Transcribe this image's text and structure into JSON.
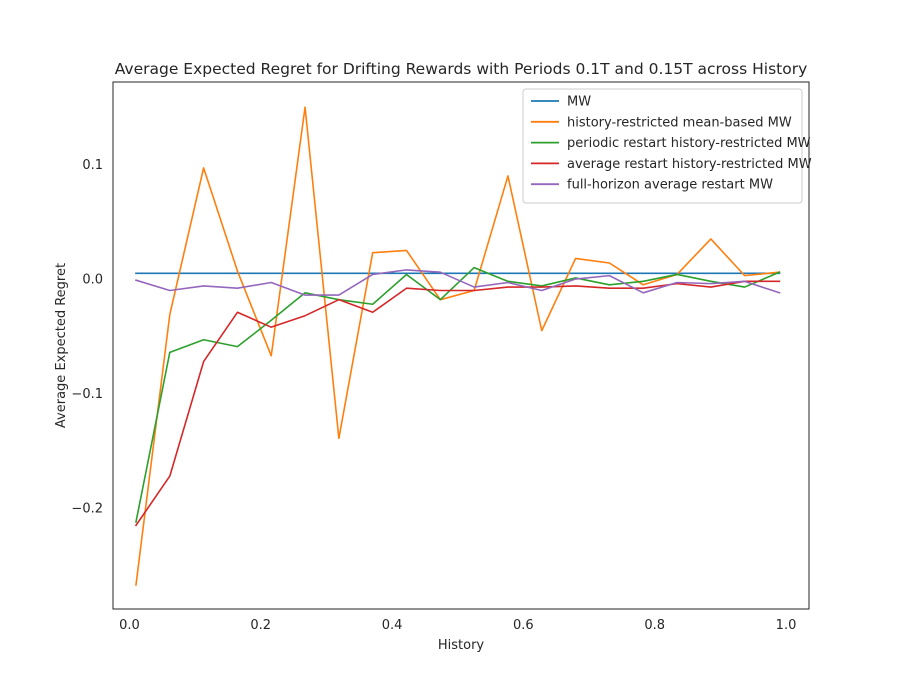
{
  "chart_data": {
    "type": "line",
    "title": "Average Expected Regret for Drifting Rewards with Periods 0.1T and 0.15T across History",
    "xlabel": "History",
    "ylabel": "Average Expected Regret",
    "xlim": [
      -0.025,
      1.035
    ],
    "ylim": [
      -0.288,
      0.172
    ],
    "xticks": [
      0.0,
      0.2,
      0.4,
      0.6,
      0.8,
      1.0
    ],
    "xtick_labels": [
      "0.0",
      "0.2",
      "0.4",
      "0.6",
      "0.8",
      "1.0"
    ],
    "yticks": [
      -0.2,
      -0.1,
      0.0,
      0.1
    ],
    "ytick_labels": [
      "−0.2",
      "−0.1",
      "0.0",
      "0.1"
    ],
    "grid": false,
    "legend_position": "top-right",
    "x": [
      0.01,
      0.0615,
      0.113,
      0.1645,
      0.216,
      0.2675,
      0.319,
      0.3705,
      0.422,
      0.4735,
      0.525,
      0.5765,
      0.628,
      0.6795,
      0.731,
      0.7825,
      0.834,
      0.8855,
      0.937,
      0.99
    ],
    "series": [
      {
        "name": "MW",
        "color": "#1f77b4",
        "values": [
          0.005,
          0.005,
          0.005,
          0.005,
          0.005,
          0.005,
          0.005,
          0.005,
          0.005,
          0.005,
          0.005,
          0.005,
          0.005,
          0.005,
          0.005,
          0.005,
          0.005,
          0.005,
          0.005,
          0.005
        ]
      },
      {
        "name": "history-restricted mean-based MW",
        "color": "#ff7f0e",
        "values": [
          -0.267,
          -0.031,
          0.097,
          0.007,
          -0.067,
          0.15,
          -0.139,
          0.023,
          0.025,
          -0.018,
          -0.01,
          0.09,
          -0.045,
          0.018,
          0.014,
          -0.005,
          0.004,
          0.035,
          0.003,
          0.006
        ]
      },
      {
        "name": "periodic restart history-restricted MW",
        "color": "#2ca02c",
        "values": [
          -0.212,
          -0.064,
          -0.053,
          -0.059,
          -0.036,
          -0.012,
          -0.018,
          -0.022,
          0.004,
          -0.018,
          0.01,
          -0.002,
          -0.006,
          0.001,
          -0.005,
          -0.002,
          0.004,
          -0.002,
          -0.007,
          0.006
        ]
      },
      {
        "name": "average restart history-restricted MW",
        "color": "#d62728",
        "values": [
          -0.215,
          -0.172,
          -0.072,
          -0.029,
          -0.042,
          -0.032,
          -0.018,
          -0.029,
          -0.008,
          -0.01,
          -0.01,
          -0.007,
          -0.007,
          -0.006,
          -0.008,
          -0.008,
          -0.004,
          -0.007,
          -0.002,
          -0.002
        ]
      },
      {
        "name": "full-horizon average restart MW",
        "color": "#9467bd",
        "values": [
          -0.001,
          -0.01,
          -0.006,
          -0.008,
          -0.003,
          -0.014,
          -0.014,
          0.004,
          0.008,
          0.006,
          -0.007,
          -0.003,
          -0.01,
          0.0,
          0.003,
          -0.012,
          -0.003,
          -0.004,
          -0.002,
          -0.012
        ]
      }
    ]
  }
}
